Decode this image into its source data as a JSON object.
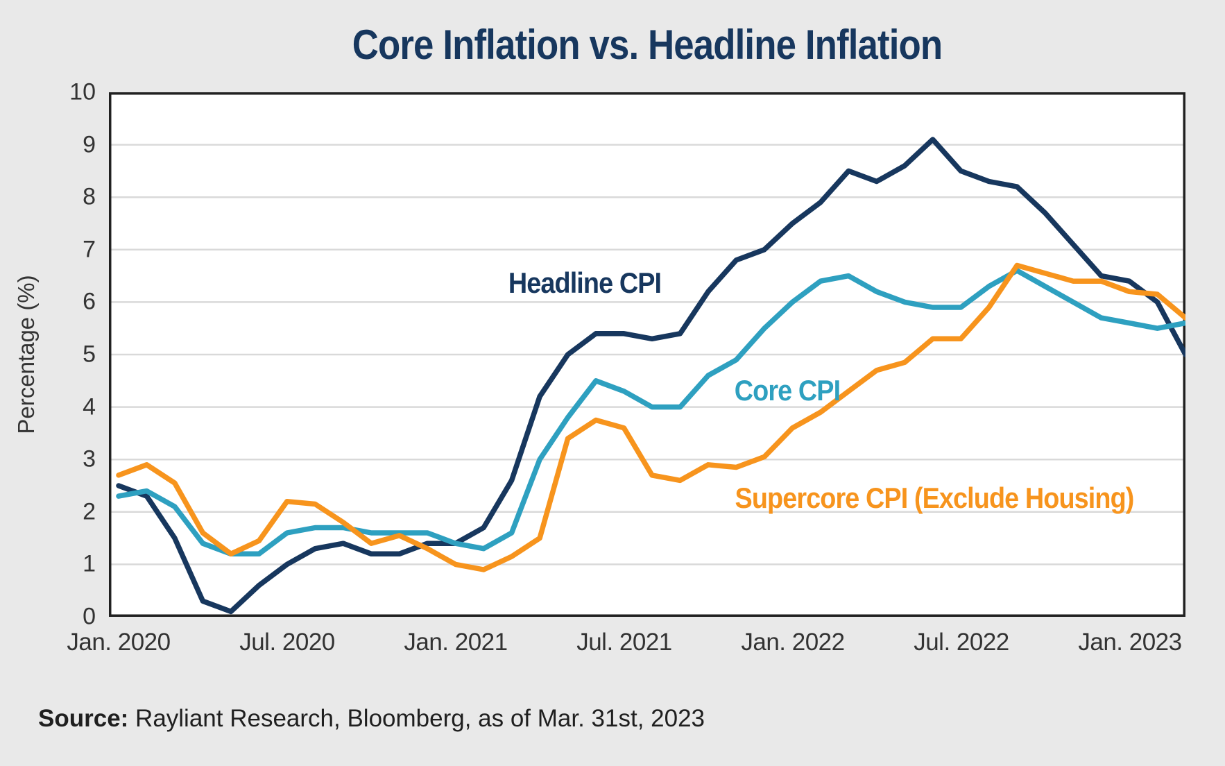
{
  "title": "Core Inflation vs. Headline Inflation",
  "source": {
    "label": "Source:",
    "text": " Rayliant Research, Bloomberg, as of Mar. 31st, 2023"
  },
  "colors": {
    "background": "#E9E9E9",
    "plot_background": "#FFFFFF",
    "gridline": "#D9D9D9",
    "frame": "#212121",
    "title_text": "#17375E",
    "tick_text": "#333333",
    "headline_cpi": "#17375E",
    "core_cpi": "#2EA0C0",
    "supercore_cpi": "#F7941D"
  },
  "chart_data": {
    "type": "line",
    "title": "Core Inflation vs. Headline Inflation",
    "xlabel": "",
    "ylabel": "Percentage (%)",
    "ylim": [
      0,
      10
    ],
    "grid": "horizontal",
    "legend_position": "inline-annotations",
    "y_ticks": [
      "0",
      "1",
      "2",
      "3",
      "4",
      "5",
      "6",
      "7",
      "8",
      "9",
      "10"
    ],
    "x_tick_labels": [
      "Jan. 2020",
      "Jul. 2020",
      "Jan. 2021",
      "Jul. 2021",
      "Jan. 2022",
      "Jul. 2022",
      "Jan. 2023"
    ],
    "x": [
      "Jan 2020",
      "Feb 2020",
      "Mar 2020",
      "Apr 2020",
      "May 2020",
      "Jun 2020",
      "Jul 2020",
      "Aug 2020",
      "Sep 2020",
      "Oct 2020",
      "Nov 2020",
      "Dec 2020",
      "Jan 2021",
      "Feb 2021",
      "Mar 2021",
      "Apr 2021",
      "May 2021",
      "Jun 2021",
      "Jul 2021",
      "Aug 2021",
      "Sep 2021",
      "Oct 2021",
      "Nov 2021",
      "Dec 2021",
      "Jan 2022",
      "Feb 2022",
      "Mar 2022",
      "Apr 2022",
      "May 2022",
      "Jun 2022",
      "Jul 2022",
      "Aug 2022",
      "Sep 2022",
      "Oct 2022",
      "Nov 2022",
      "Dec 2022",
      "Jan 2023",
      "Feb 2023",
      "Mar 2023"
    ],
    "series": [
      {
        "name": "Headline CPI",
        "color": "#17375E",
        "values": [
          2.5,
          2.3,
          1.5,
          0.3,
          0.1,
          0.6,
          1.0,
          1.3,
          1.4,
          1.2,
          1.2,
          1.4,
          1.4,
          1.7,
          2.6,
          4.2,
          5.0,
          5.4,
          5.4,
          5.3,
          5.4,
          6.2,
          6.8,
          7.0,
          7.5,
          7.9,
          8.5,
          8.3,
          8.6,
          9.1,
          8.5,
          8.3,
          8.2,
          7.7,
          7.1,
          6.5,
          6.4,
          6.0,
          5.0
        ]
      },
      {
        "name": "Core CPI",
        "color": "#2EA0C0",
        "values": [
          2.3,
          2.4,
          2.1,
          1.4,
          1.2,
          1.2,
          1.6,
          1.7,
          1.7,
          1.6,
          1.6,
          1.6,
          1.4,
          1.3,
          1.6,
          3.0,
          3.8,
          4.5,
          4.3,
          4.0,
          4.0,
          4.6,
          4.9,
          5.5,
          6.0,
          6.4,
          6.5,
          6.2,
          6.0,
          5.9,
          5.9,
          6.3,
          6.6,
          6.3,
          6.0,
          5.7,
          5.6,
          5.5,
          5.6
        ]
      },
      {
        "name": "Supercore CPI (Exclude Housing)",
        "color": "#F7941D",
        "values": [
          2.7,
          2.9,
          2.55,
          1.6,
          1.2,
          1.45,
          2.2,
          2.15,
          1.8,
          1.4,
          1.55,
          1.3,
          1.0,
          0.9,
          1.15,
          1.5,
          3.4,
          3.75,
          3.6,
          2.7,
          2.6,
          2.9,
          2.85,
          3.05,
          3.6,
          3.9,
          4.3,
          4.7,
          4.85,
          5.3,
          5.3,
          5.9,
          6.7,
          6.55,
          6.4,
          6.4,
          6.2,
          6.15,
          5.7
        ]
      }
    ]
  }
}
